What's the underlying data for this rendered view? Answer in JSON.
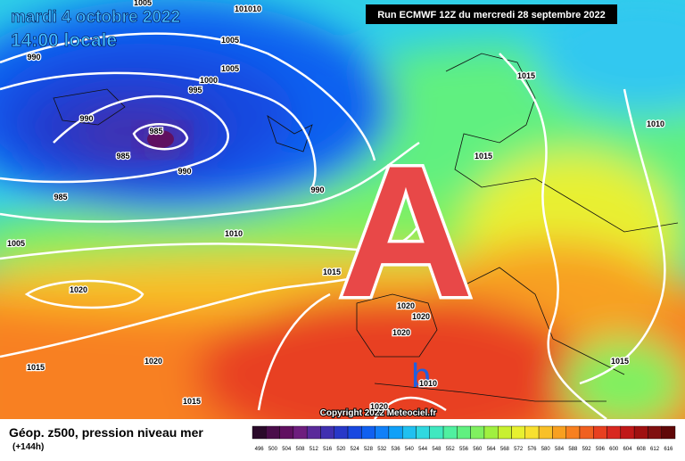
{
  "header": {
    "date": "mardi 4 octobre 2022",
    "time": "14:00 locale",
    "run": "Run ECMWF 12Z du mercredi 28 septembre 2022"
  },
  "map": {
    "high": "A",
    "low": "b",
    "copyright": "Copyright 2022 Meteociel.fr",
    "isobar_labels": [
      "1005",
      "101010",
      "1005",
      "1005",
      "1000",
      "995",
      "990",
      "990",
      "985",
      "985",
      "990",
      "985",
      "990",
      "1010",
      "1005",
      "1020",
      "1015",
      "1015",
      "1015",
      "1010",
      "1020",
      "1020",
      "1020",
      "1020",
      "1015",
      "1015",
      "1015",
      "1020",
      "1010"
    ]
  },
  "footer": {
    "title": "Géop. z500, pression niveau mer",
    "lead": "(+144h)"
  },
  "scale": {
    "labels": [
      496,
      500,
      504,
      508,
      512,
      516,
      520,
      524,
      528,
      532,
      536,
      540,
      544,
      548,
      552,
      556,
      560,
      564,
      568,
      572,
      576,
      580,
      584,
      588,
      592,
      596,
      600,
      604,
      608,
      612,
      616
    ],
    "colors": [
      "#2a0a2a",
      "#4a0d4a",
      "#601060",
      "#6e1e7e",
      "#5a2a9a",
      "#4030b0",
      "#2838c8",
      "#1848e0",
      "#1060f0",
      "#1080f8",
      "#10a0f8",
      "#20c0f0",
      "#30d8e0",
      "#40e8c0",
      "#50f0a0",
      "#60f080",
      "#80f060",
      "#a0f040",
      "#c8f030",
      "#e8f030",
      "#f8e030",
      "#f8c028",
      "#f8a020",
      "#f88020",
      "#f06020",
      "#e84020",
      "#d82820",
      "#c01818",
      "#a01010",
      "#801010",
      "#600808"
    ]
  }
}
